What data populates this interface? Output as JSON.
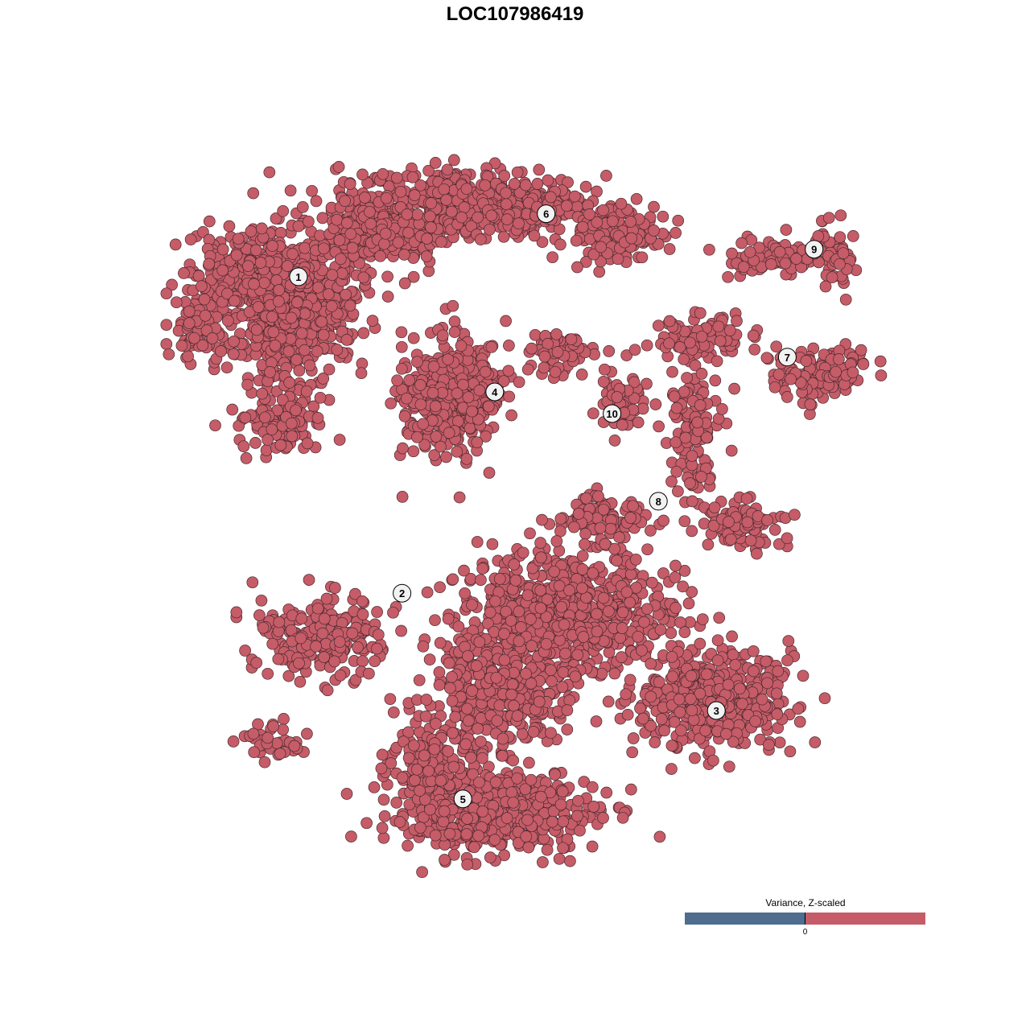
{
  "chart_data": {
    "type": "scatter",
    "title": "LOC107986419",
    "xlabel": "",
    "ylabel": "",
    "grid": false,
    "axes_visible": false,
    "point_color": "#c55c68",
    "point_stroke": "#4a2a2e",
    "clusters": [
      {
        "label": "1",
        "x": -29.9,
        "y": 32.9
      },
      {
        "label": "2",
        "x": -15.6,
        "y": -10.8
      },
      {
        "label": "3",
        "x": 27.8,
        "y": -27.0
      },
      {
        "label": "4",
        "x": -2.8,
        "y": 17.0
      },
      {
        "label": "5",
        "x": -7.2,
        "y": -39.2
      },
      {
        "label": "6",
        "x": 4.3,
        "y": 41.6
      },
      {
        "label": "7",
        "x": 37.6,
        "y": 21.8
      },
      {
        "label": "8",
        "x": 19.8,
        "y": 1.9
      },
      {
        "label": "9",
        "x": 41.3,
        "y": 36.7
      },
      {
        "label": "10",
        "x": 13.4,
        "y": 14.0
      }
    ],
    "legend": {
      "title": "Variance, Z-scaled",
      "tick_label": "0",
      "low_color": "#4f6d8f",
      "high_color": "#c55c68",
      "position": "bottom-right"
    }
  }
}
